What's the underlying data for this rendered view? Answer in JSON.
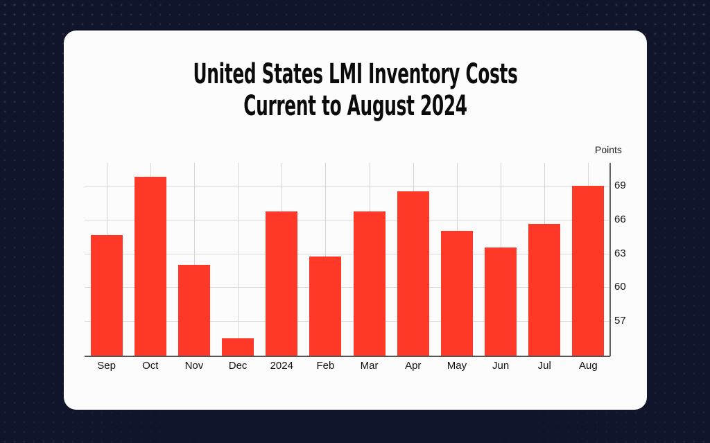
{
  "title": {
    "line1": "United States LMI Inventory Costs",
    "line2": "Current to August 2024"
  },
  "unit_label": "Points",
  "colors": {
    "background": "#11152b",
    "card": "#fdfcfd",
    "bar": "#ff3828",
    "grid": "#d8d8dc"
  },
  "chart_data": {
    "type": "bar",
    "title": "United States LMI Inventory Costs — Current to August 2024",
    "xlabel": "",
    "ylabel": "Points",
    "categories": [
      "Sep",
      "Oct",
      "Nov",
      "Dec",
      "2024",
      "Feb",
      "Mar",
      "Apr",
      "May",
      "Jun",
      "Jul",
      "Aug"
    ],
    "values": [
      64.6,
      69.8,
      62.0,
      55.5,
      66.7,
      62.7,
      66.7,
      68.5,
      65.0,
      63.5,
      65.6,
      69.0
    ],
    "yticks": [
      57,
      60,
      63,
      66,
      69
    ],
    "ylim": [
      53.9,
      71.0
    ],
    "y_axis_position": "right",
    "grid": true,
    "legend": null
  }
}
